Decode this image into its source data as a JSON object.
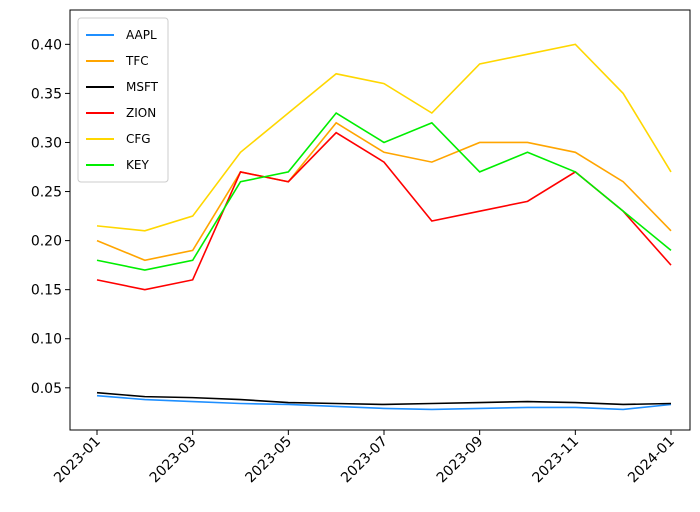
{
  "chart_data": {
    "type": "line",
    "x": [
      "2023-01",
      "2023-02",
      "2023-03",
      "2023-04",
      "2023-05",
      "2023-06",
      "2023-07",
      "2023-08",
      "2023-09",
      "2023-10",
      "2023-11",
      "2023-12",
      "2024-01"
    ],
    "xticks": [
      "2023-01",
      "2023-03",
      "2023-05",
      "2023-07",
      "2023-09",
      "2023-11",
      "2024-01"
    ],
    "ylim": [
      0.007,
      0.435
    ],
    "yticks": [
      0.05,
      {
        "value": 0.1,
        "label": "0.10"
      },
      0.15,
      {
        "value": 0.2,
        "label": "0.20"
      },
      0.25,
      {
        "value": 0.3,
        "label": "0.30"
      },
      0.35,
      {
        "value": 0.4,
        "label": "0.40"
      }
    ],
    "legend": "upper left",
    "series": [
      {
        "name": "AAPL",
        "color": "#1f8fff",
        "values": [
          0.042,
          0.038,
          0.036,
          0.034,
          0.033,
          0.031,
          0.029,
          0.028,
          0.029,
          0.03,
          0.03,
          0.028,
          0.033
        ]
      },
      {
        "name": "TFC",
        "color": "#ffa500",
        "values": [
          0.2,
          0.18,
          0.19,
          0.27,
          0.26,
          0.32,
          0.29,
          0.28,
          0.3,
          0.3,
          0.29,
          0.26,
          0.21
        ]
      },
      {
        "name": "MSFT",
        "color": "#000000",
        "values": [
          0.045,
          0.041,
          0.04,
          0.038,
          0.035,
          0.034,
          0.033,
          0.034,
          0.035,
          0.036,
          0.035,
          0.033,
          0.034
        ]
      },
      {
        "name": "ZION",
        "color": "#ff0000",
        "values": [
          0.16,
          0.15,
          0.16,
          0.27,
          0.26,
          0.31,
          0.28,
          0.22,
          0.23,
          0.24,
          0.27,
          0.23,
          0.175
        ]
      },
      {
        "name": "CFG",
        "color": "#ffd700",
        "values": [
          0.215,
          0.21,
          0.225,
          0.29,
          0.33,
          0.37,
          0.36,
          0.33,
          0.38,
          0.39,
          0.4,
          0.35,
          0.27
        ]
      },
      {
        "name": "KEY",
        "color": "#00ee00",
        "values": [
          0.18,
          0.17,
          0.18,
          0.26,
          0.27,
          0.33,
          0.3,
          0.32,
          0.27,
          0.29,
          0.27,
          0.23,
          0.19
        ]
      }
    ]
  }
}
